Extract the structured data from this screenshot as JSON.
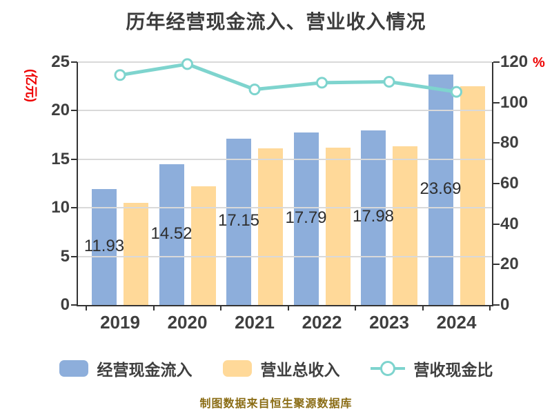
{
  "title": "历年经营现金流入、营业收入情况",
  "footer": "制图数据来自恒生聚源数据库",
  "left_axis": {
    "unit": "(亿元)",
    "ticks": [
      0,
      5,
      10,
      15,
      20,
      25
    ],
    "max": 25
  },
  "right_axis": {
    "unit": "%",
    "ticks": [
      0,
      20,
      40,
      60,
      80,
      100,
      120
    ],
    "max": 120
  },
  "chart_data": {
    "type": "bar",
    "categories": [
      "2019",
      "2020",
      "2021",
      "2022",
      "2023",
      "2024"
    ],
    "series": [
      {
        "name": "经营现金流入",
        "type": "bar",
        "axis": "left",
        "color": "#8DAEDB",
        "values": [
          11.93,
          14.52,
          17.15,
          17.79,
          17.98,
          23.69
        ],
        "labels": [
          "11.93",
          "14.52",
          "17.15",
          "17.79",
          "17.98",
          "23.69"
        ]
      },
      {
        "name": "营业总收入",
        "type": "bar",
        "axis": "left",
        "color": "#FFD999",
        "values": [
          10.5,
          12.2,
          16.1,
          16.2,
          16.3,
          22.5
        ]
      },
      {
        "name": "营收现金比",
        "type": "line",
        "axis": "right",
        "color": "#7ED4CE",
        "values": [
          113.6,
          119.0,
          106.5,
          109.8,
          110.3,
          105.3
        ]
      }
    ],
    "ylim_left": [
      0,
      25
    ],
    "ylim_right": [
      0,
      120
    ],
    "grid": true,
    "legend_position": "bottom",
    "value_labels_on_series": "经营现金流入"
  },
  "colors": {
    "bar_cash_inflow": "#8DAEDB",
    "bar_revenue": "#FFD999",
    "line_ratio": "#7ED4CE",
    "accent_red": "#EE0000",
    "footer_text": "#8A6C14",
    "grid": "#D9D9D9",
    "axis": "#333333",
    "text": "#3F3F3F"
  }
}
